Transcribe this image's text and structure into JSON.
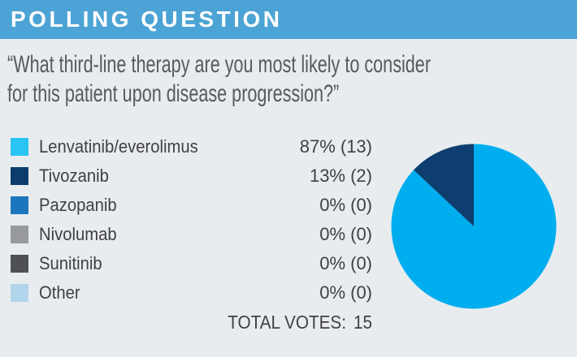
{
  "header": {
    "title": "POLLING QUESTION"
  },
  "question": {
    "line1": "“What third-line therapy are you most likely to consider",
    "line2": "for this patient upon disease progression?”"
  },
  "legend": {
    "items": [
      {
        "label": "Lenvatinib/everolimus",
        "value_text": "87% (13)",
        "color": "#29C4F1"
      },
      {
        "label": "Tivozanib",
        "value_text": "13% (2)",
        "color": "#0B3C6B"
      },
      {
        "label": "Pazopanib",
        "value_text": "0% (0)",
        "color": "#1B76BE"
      },
      {
        "label": "Nivolumab",
        "value_text": "0% (0)",
        "color": "#97999C"
      },
      {
        "label": "Sunitinib",
        "value_text": "0% (0)",
        "color": "#4E5054"
      },
      {
        "label": "Other",
        "value_text": "0% (0)",
        "color": "#B1D5EA"
      }
    ]
  },
  "footer": {
    "total_votes_label": "TOTAL VOTES:",
    "total_votes_value": "15"
  },
  "chart_data": {
    "type": "pie",
    "title": "Polling question results",
    "categories": [
      "Lenvatinib/everolimus",
      "Tivozanib",
      "Pazopanib",
      "Nivolumab",
      "Sunitinib",
      "Other"
    ],
    "values_percent": [
      87,
      13,
      0,
      0,
      0,
      0
    ],
    "counts": [
      13,
      2,
      0,
      0,
      0,
      0
    ],
    "total_votes": 15,
    "colors": [
      "#00AEEF",
      "#0D3E6F",
      "#1B76BE",
      "#97999C",
      "#4E5054",
      "#B1D5EA"
    ],
    "start": "top",
    "direction": "clockwise",
    "legend_position": "left"
  },
  "colors": {
    "banner": "#4CA3D5",
    "background": "#E8ECEF",
    "title_text": "#FFFFFF",
    "question_text": "#58595B",
    "label_text": "#414042"
  }
}
